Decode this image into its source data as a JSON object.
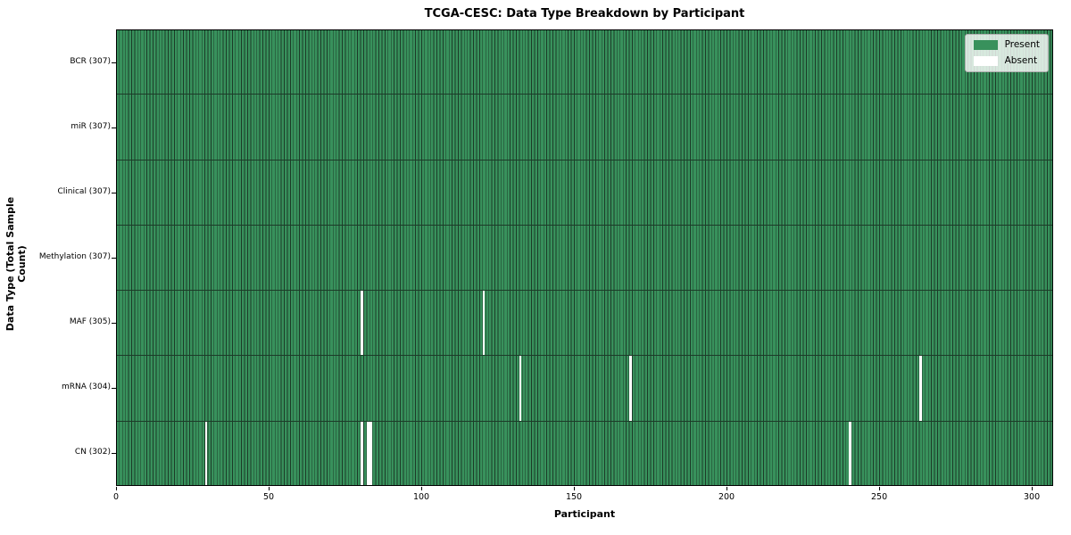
{
  "colors": {
    "present": "#38915c",
    "absent": "#ffffff",
    "grid_line": "#1c3b28",
    "spine": "#000000",
    "legend_border": "#b0b0b0"
  },
  "legend": {
    "entries": [
      {
        "label": "Present",
        "color": "#38915c"
      },
      {
        "label": "Absent",
        "color": "#ffffff"
      }
    ]
  },
  "chart_data": {
    "type": "heatmap",
    "title": "TCGA-CESC: Data Type Breakdown by Participant",
    "xlabel": "Participant",
    "ylabel": "Data Type (Total Sample Count)",
    "n_participants": 307,
    "x_ticks": [
      0,
      50,
      100,
      150,
      200,
      250,
      300
    ],
    "xlim": [
      0,
      307
    ],
    "grid": false,
    "legend_position": "upper right",
    "cell_values": "1 = Present (green), 0 = Absent (white)",
    "rows": [
      {
        "label": "BCR (307)",
        "data_type": "BCR",
        "total_samples": 307,
        "absent_participants": []
      },
      {
        "label": "miR (307)",
        "data_type": "miR",
        "total_samples": 307,
        "absent_participants": []
      },
      {
        "label": "Clinical (307)",
        "data_type": "Clinical",
        "total_samples": 307,
        "absent_participants": []
      },
      {
        "label": "Methylation (307)",
        "data_type": "Methylation",
        "total_samples": 307,
        "absent_participants": []
      },
      {
        "label": "MAF (305)",
        "data_type": "MAF",
        "total_samples": 305,
        "absent_participants": [
          80,
          120
        ]
      },
      {
        "label": "mRNA (304)",
        "data_type": "mRNA",
        "total_samples": 304,
        "absent_participants": [
          132,
          168,
          263
        ]
      },
      {
        "label": "CN (302)",
        "data_type": "CN",
        "total_samples": 302,
        "absent_participants": [
          29,
          80,
          82,
          83,
          240
        ]
      }
    ]
  }
}
